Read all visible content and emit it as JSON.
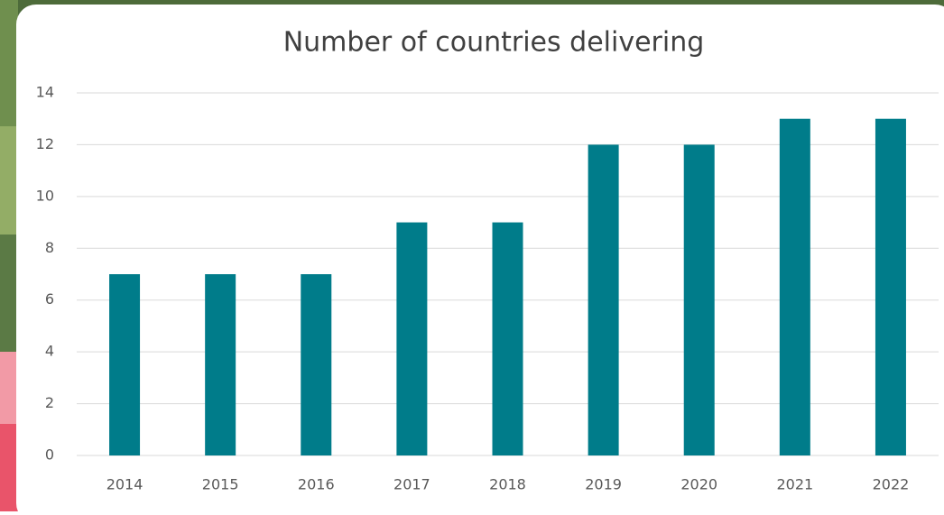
{
  "chart_data": {
    "type": "bar",
    "title": "Number of countries delivering",
    "categories": [
      "2014",
      "2015",
      "2016",
      "2017",
      "2018",
      "2019",
      "2020",
      "2021",
      "2022"
    ],
    "values": [
      7,
      7,
      7,
      9,
      9,
      12,
      12,
      13,
      13
    ],
    "color": "#007c8a",
    "ylim": [
      0,
      14
    ],
    "yticks": [
      0,
      2,
      4,
      6,
      8,
      10,
      12,
      14
    ],
    "grid": true
  }
}
